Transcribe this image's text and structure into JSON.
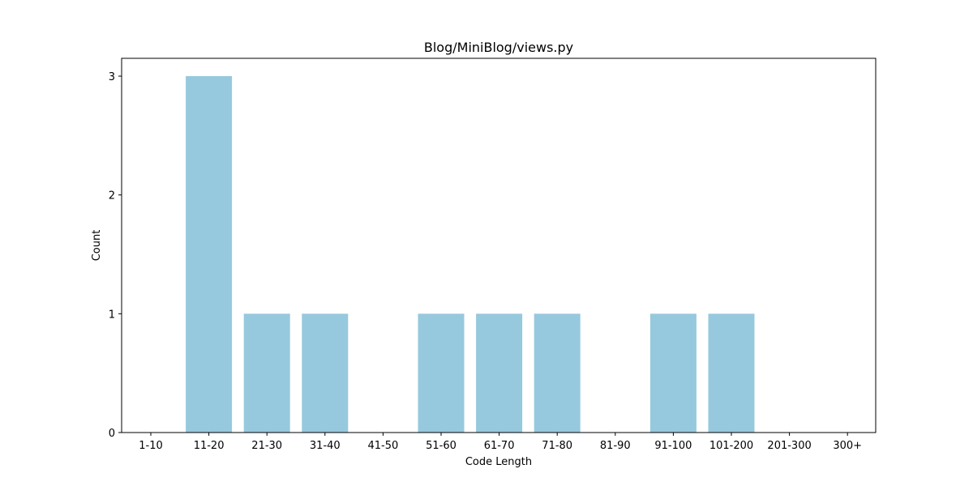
{
  "chart_data": {
    "type": "bar",
    "title": "Blog/MiniBlog/views.py",
    "xlabel": "Code Length",
    "ylabel": "Count",
    "categories": [
      "1-10",
      "11-20",
      "21-30",
      "31-40",
      "41-50",
      "51-60",
      "61-70",
      "71-80",
      "81-90",
      "91-100",
      "101-200",
      "201-300",
      "300+"
    ],
    "values": [
      0,
      3,
      1,
      1,
      0,
      1,
      1,
      1,
      0,
      1,
      1,
      0,
      0
    ],
    "ylim": [
      0,
      3.15
    ],
    "yticks": [
      0,
      1,
      2,
      3
    ],
    "grid": false,
    "bar_color": "#96c9dd"
  }
}
